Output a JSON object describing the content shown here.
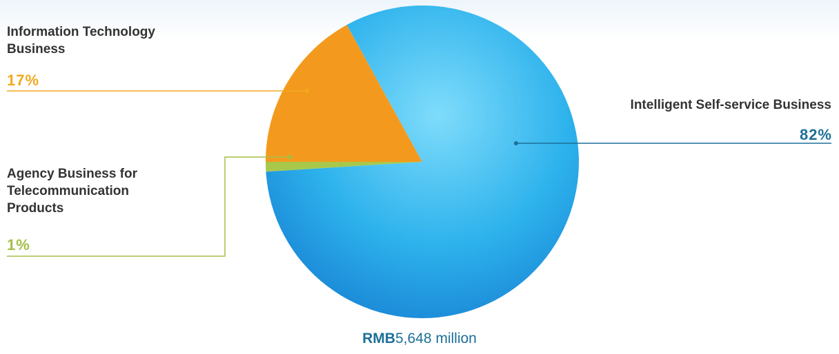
{
  "chart_data": {
    "type": "pie",
    "categories": [
      "Information Technology Business",
      "Intelligent Self-service Business",
      "Agency Business for Telecommunication Products"
    ],
    "values": [
      17,
      82,
      1
    ],
    "value_labels": [
      "17%",
      "82%",
      "1%"
    ],
    "colors": [
      "#f39a1e",
      "#2db2ec",
      "#a8c84c"
    ],
    "label_colors": [
      "#f2a91f",
      "#1c6f98",
      "#a3bf45"
    ],
    "total": {
      "unit": "RMB",
      "amount": "5,648 million"
    }
  }
}
